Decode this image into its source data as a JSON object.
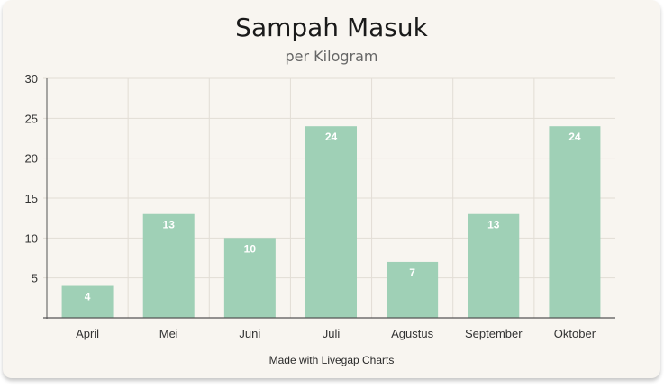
{
  "colors": {
    "bar": "#9fd0b6",
    "grid": "#e2ddd5",
    "axis": "#555555",
    "card": "#f8f5f0"
  },
  "footer": "Made with Livegap Charts",
  "chart_data": {
    "type": "bar",
    "title": "Sampah Masuk",
    "subtitle": "per Kilogram",
    "categories": [
      "April",
      "Mei",
      "Juni",
      "Juli",
      "Agustus",
      "September",
      "Oktober"
    ],
    "values": [
      4,
      13,
      10,
      24,
      7,
      13,
      24
    ],
    "ylim": [
      0,
      30
    ],
    "yticks": [
      5,
      10,
      15,
      20,
      25,
      30
    ],
    "grid": true,
    "legend": "none"
  }
}
